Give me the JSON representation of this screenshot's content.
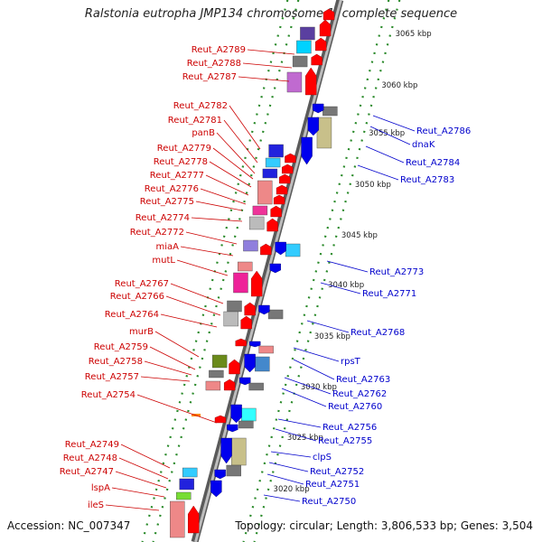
{
  "title": "Ralstonia eutropha JMP134 chromosome 1, complete sequence",
  "footer": {
    "accession": "Accession: NC_007347",
    "summary": "Topology: circular; Length: 3,806,533 bp; Genes: 3,504"
  },
  "colors": {
    "left_label": "#cc0000",
    "right_label": "#0000cc",
    "backbone": "#8c8c8c",
    "tick": "#2a8a2a",
    "forward_arrow": "#ff0000",
    "reverse_arrow": "#0000ee"
  },
  "scale_ticks": [
    {
      "label": "3065 kbp",
      "pos": 3065
    },
    {
      "label": "3060 kbp",
      "pos": 3060
    },
    {
      "label": "3055 kbp",
      "pos": 3055
    },
    {
      "label": "3050 kbp",
      "pos": 3050
    },
    {
      "label": "3045 kbp",
      "pos": 3045
    },
    {
      "label": "3040 kbp",
      "pos": 3040
    },
    {
      "label": "3035 kbp",
      "pos": 3035
    },
    {
      "label": "3030 kbp",
      "pos": 3030
    },
    {
      "label": "3025 kbp",
      "pos": 3025
    },
    {
      "label": "3020 kbp",
      "pos": 3020
    }
  ],
  "left_labels": [
    "Reut_A2789",
    "Reut_A2788",
    "Reut_A2787",
    "Reut_A2782",
    "Reut_A2781",
    "panB",
    "Reut_A2779",
    "Reut_A2778",
    "Reut_A2777",
    "Reut_A2776",
    "Reut_A2775",
    "Reut_A2774",
    "Reut_A2772",
    "miaA",
    "mutL",
    "Reut_A2767",
    "Reut_A2766",
    "Reut_A2764",
    "murB",
    "Reut_A2759",
    "Reut_A2758",
    "Reut_A2757",
    "Reut_A2754",
    "Reut_A2749",
    "Reut_A2748",
    "Reut_A2747",
    "lspA",
    "ileS"
  ],
  "right_labels": [
    "Reut_A2786",
    "dnaK",
    "Reut_A2784",
    "Reut_A2783",
    "Reut_A2773",
    "Reut_A2771",
    "Reut_A2768",
    "rpsT",
    "Reut_A2763",
    "Reut_A2762",
    "Reut_A2760",
    "Reut_A2756",
    "Reut_A2755",
    "clpS",
    "Reut_A2752",
    "Reut_A2751",
    "Reut_A2750"
  ]
}
